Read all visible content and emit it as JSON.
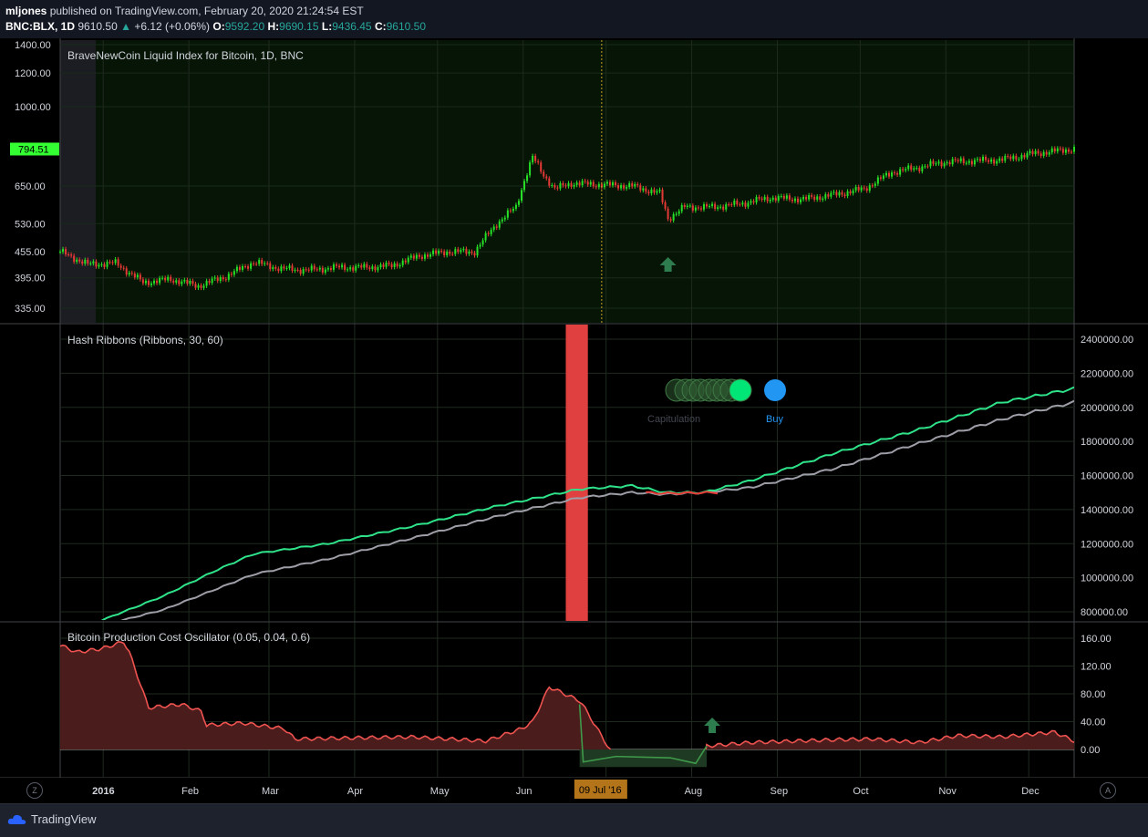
{
  "header": {
    "user": "mljones",
    "published": "published on TradingView.com, February 20, 2020 21:24:54 EST",
    "symbol": "BNC:BLX, 1D",
    "last": "9610.50",
    "change_arrow": "▲",
    "change": "+6.12 (+0.06%)",
    "o_label": "O:",
    "o": "9592.20",
    "h_label": "H:",
    "h": "9690.15",
    "l_label": "L:",
    "l": "9436.45",
    "c_label": "C:",
    "c": "9610.50"
  },
  "colors": {
    "up": "#26e026",
    "down": "#e53935",
    "background": "#131722",
    "ribbon_fast_up": "#2fe38a",
    "ribbon_slow": "#9e9ea8",
    "capitulation": "#e04040",
    "buy": "#2196f3",
    "osc_line": "#ef5350",
    "osc_fill": "#4a1c1c",
    "osc_green": "#3e9a4a"
  },
  "footer": {
    "brand": "TradingView",
    "z_btn": "Z",
    "a_btn": "A"
  },
  "chart_data": [
    {
      "type": "candlestick",
      "title": "BraveNewCoin Liquid Index for Bitcoin, 1D, BNC",
      "y_scale": "log",
      "y_ticks": [
        "1400.00",
        "1200.00",
        "1000.00",
        "794.51",
        "650.00",
        "530.00",
        "455.00",
        "395.00",
        "335.00"
      ],
      "last_price_label": "794.51",
      "x": [
        "2015-12-26",
        "2016-01-05",
        "2016-01-15",
        "2016-01-25",
        "2016-02-04",
        "2016-02-14",
        "2016-02-24",
        "2016-03-05",
        "2016-03-15",
        "2016-03-25",
        "2016-04-04",
        "2016-04-14",
        "2016-04-24",
        "2016-05-04",
        "2016-05-14",
        "2016-05-24",
        "2016-06-01",
        "2016-06-08",
        "2016-06-14",
        "2016-06-18",
        "2016-06-22",
        "2016-06-28",
        "2016-07-09",
        "2016-07-20",
        "2016-07-30",
        "2016-08-02",
        "2016-08-08",
        "2016-08-18",
        "2016-08-28",
        "2016-09-08",
        "2016-09-20",
        "2016-10-01",
        "2016-10-12",
        "2016-10-22",
        "2016-11-01",
        "2016-11-10",
        "2016-11-20",
        "2016-12-01",
        "2016-12-12",
        "2016-12-27"
      ],
      "close": [
        455,
        425,
        428,
        385,
        392,
        378,
        398,
        430,
        415,
        412,
        418,
        418,
        422,
        445,
        455,
        455,
        530,
        580,
        760,
        690,
        640,
        660,
        655,
        650,
        625,
        545,
        580,
        580,
        590,
        610,
        605,
        620,
        640,
        700,
        720,
        740,
        745,
        750,
        775,
        795
      ],
      "annotations": [
        {
          "label": "up-arrow",
          "date": "2016-08-02"
        }
      ]
    },
    {
      "type": "line",
      "title": "Hash Ribbons (Ribbons, 30, 60)",
      "y_ticks": [
        "2400000.00",
        "2200000.00",
        "2000000.00",
        "1800000.00",
        "1600000.00",
        "1400000.00",
        "1200000.00",
        "1000000.00",
        "800000.00"
      ],
      "x": [
        "2016-01-10",
        "2016-02-01",
        "2016-02-20",
        "2016-03-05",
        "2016-04-01",
        "2016-05-01",
        "2016-06-01",
        "2016-07-01",
        "2016-07-20",
        "2016-08-01",
        "2016-08-15",
        "2016-09-01",
        "2016-10-01",
        "2016-11-01",
        "2016-12-01",
        "2016-12-27"
      ],
      "series": [
        {
          "values": [
            750000,
            890000,
            1040000,
            1140000,
            1200000,
            1300000,
            1420000,
            1520000,
            1540000,
            1500000,
            1500000,
            1570000,
            1730000,
            1870000,
            2030000,
            2110000
          ]
        },
        {
          "values": [
            720000,
            810000,
            930000,
            1020000,
            1110000,
            1230000,
            1360000,
            1470000,
            1500000,
            1490000,
            1500000,
            1530000,
            1640000,
            1790000,
            1930000,
            2030000
          ]
        }
      ],
      "capitulation_band": {
        "from": "2016-06-26",
        "to": "2016-07-04"
      },
      "signals": {
        "capitulation_label": "Capitulation",
        "buy_label": "Buy"
      }
    },
    {
      "type": "area",
      "title": "Bitcoin Production Cost Oscillator (0.05, 0.04, 0.6)",
      "y_ticks": [
        "160.00",
        "120.00",
        "80.00",
        "40.00",
        "0.00"
      ],
      "x": [
        "2015-12-26",
        "2016-01-01",
        "2016-01-10",
        "2016-01-18",
        "2016-01-20",
        "2016-01-27",
        "2016-02-08",
        "2016-02-15",
        "2016-02-17",
        "2016-03-01",
        "2016-03-16",
        "2016-03-20",
        "2016-04-01",
        "2016-05-01",
        "2016-05-20",
        "2016-05-28",
        "2016-06-10",
        "2016-06-14",
        "2016-06-20",
        "2016-07-01",
        "2016-07-02",
        "2016-07-15",
        "2016-08-01",
        "2016-08-15",
        "2016-08-16",
        "2016-09-01",
        "2016-10-01",
        "2016-10-15",
        "2016-11-01",
        "2016-11-15",
        "2016-12-01",
        "2016-12-20",
        "2016-12-27"
      ],
      "values": [
        150,
        140,
        145,
        155,
        140,
        60,
        65,
        55,
        35,
        38,
        30,
        15,
        16,
        18,
        14,
        12,
        30,
        40,
        90,
        70,
        65,
        -20,
        -10,
        -20,
        5,
        10,
        14,
        15,
        10,
        20,
        18,
        25,
        12
      ],
      "annotations": [
        {
          "label": "up-arrow",
          "date": "2016-08-18"
        }
      ]
    }
  ],
  "x_axis": {
    "labels": [
      "2016",
      "Feb",
      "Mar",
      "Apr",
      "May",
      "Jun",
      "Jul",
      "Aug",
      "Sep",
      "Oct",
      "Nov",
      "Dec"
    ],
    "crosshair_label": "09 Jul '16"
  }
}
